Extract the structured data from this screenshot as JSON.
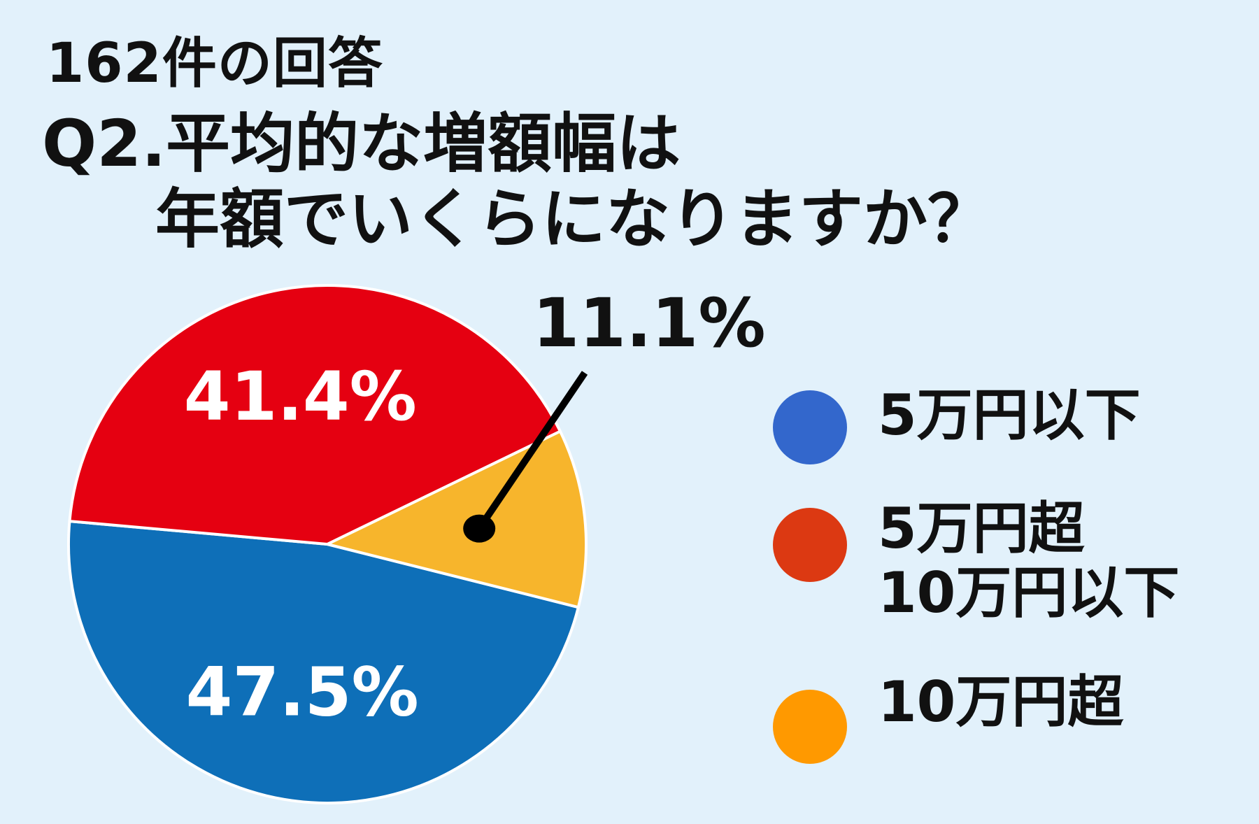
{
  "header": {
    "count": "162件の回答",
    "title_line1": "Q2.平均的な増額幅は",
    "title_line2": "年額でいくらになりますか？"
  },
  "colors": {
    "background": "#e2f1fb",
    "text": "#111111",
    "label_white": "#ffffff",
    "slice_border": "#ffffff"
  },
  "legend": {
    "items": [
      {
        "label": "5万円以下",
        "color": "#3367cc"
      },
      {
        "label": "5万円超\n10万円以下",
        "color": "#dc3912"
      },
      {
        "label": "10万円超",
        "color": "#ff9900"
      }
    ]
  },
  "chart_data": {
    "type": "pie",
    "title": "Q2.平均的な増額幅は年額でいくらになりますか？",
    "legend_position": "right",
    "slices": [
      {
        "category": "5万円以下",
        "value": 47.5,
        "label": "47.5%",
        "color": "#0e6fb8"
      },
      {
        "category": "5万円超 10万円以下",
        "value": 41.4,
        "label": "41.4%",
        "color": "#e50011"
      },
      {
        "category": "10万円超",
        "value": 11.1,
        "label": "11.1%",
        "color": "#f7b52c"
      }
    ]
  }
}
